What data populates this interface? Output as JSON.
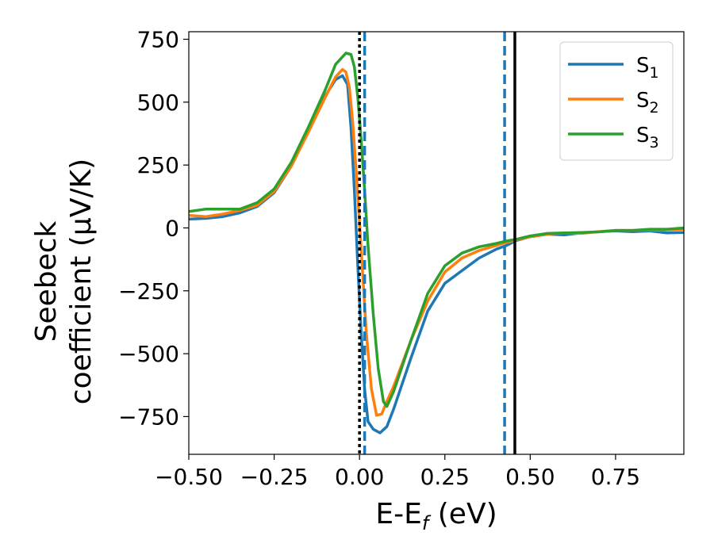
{
  "chart_data": {
    "type": "line",
    "xlabel_main": "E-E",
    "xlabel_sub": "f",
    "xlabel_unit": " (eV)",
    "ylabel_line1": "Seebeck",
    "ylabel_line2": "coefficient  (μV/K)",
    "xlim": [
      -0.5,
      0.95
    ],
    "ylim": [
      -900,
      780
    ],
    "x_ticks": [
      -0.5,
      -0.25,
      0.0,
      0.25,
      0.5,
      0.75
    ],
    "x_tick_labels": [
      "−0.50",
      "−0.25",
      "0.00",
      "0.25",
      "0.50",
      "0.75"
    ],
    "y_ticks": [
      750,
      500,
      250,
      0,
      -250,
      -500,
      -750
    ],
    "y_tick_labels": [
      "750",
      "500",
      "250",
      "0",
      "−250",
      "−500",
      "−750"
    ],
    "grid": false,
    "legend_position": "top-right",
    "series": [
      {
        "name": "S",
        "sub": "1",
        "color": "#1f77b4",
        "x": [
          -0.5,
          -0.45,
          -0.4,
          -0.35,
          -0.3,
          -0.25,
          -0.2,
          -0.15,
          -0.1,
          -0.07,
          -0.05,
          -0.035,
          -0.025,
          -0.015,
          -0.005,
          0.005,
          0.015,
          0.025,
          0.04,
          0.06,
          0.08,
          0.1,
          0.15,
          0.2,
          0.25,
          0.3,
          0.35,
          0.4,
          0.43,
          0.46,
          0.5,
          0.55,
          0.6,
          0.65,
          0.7,
          0.75,
          0.8,
          0.85,
          0.9,
          0.95
        ],
        "y": [
          35,
          38,
          45,
          60,
          85,
          140,
          245,
          385,
          525,
          590,
          605,
          570,
          400,
          150,
          -150,
          -420,
          -640,
          -770,
          -800,
          -815,
          -790,
          -720,
          -520,
          -330,
          -220,
          -170,
          -120,
          -85,
          -70,
          -50,
          -35,
          -25,
          -28,
          -20,
          -15,
          -12,
          -15,
          -12,
          -20,
          -18
        ]
      },
      {
        "name": "S",
        "sub": "2",
        "color": "#ff7f0e",
        "x": [
          -0.5,
          -0.45,
          -0.4,
          -0.35,
          -0.3,
          -0.25,
          -0.2,
          -0.15,
          -0.1,
          -0.07,
          -0.05,
          -0.04,
          -0.03,
          -0.02,
          -0.01,
          0.0,
          0.01,
          0.02,
          0.035,
          0.05,
          0.065,
          0.08,
          0.1,
          0.15,
          0.2,
          0.25,
          0.3,
          0.35,
          0.4,
          0.43,
          0.46,
          0.5,
          0.55,
          0.6,
          0.65,
          0.7,
          0.75,
          0.8,
          0.85,
          0.9,
          0.95
        ],
        "y": [
          50,
          45,
          55,
          70,
          90,
          145,
          245,
          380,
          520,
          600,
          630,
          620,
          560,
          420,
          230,
          20,
          -200,
          -420,
          -640,
          -745,
          -740,
          -690,
          -630,
          -450,
          -290,
          -175,
          -120,
          -90,
          -70,
          -58,
          -48,
          -35,
          -25,
          -20,
          -22,
          -15,
          -10,
          -10,
          -8,
          -8,
          -5
        ]
      },
      {
        "name": "S",
        "sub": "3",
        "color": "#2ca02c",
        "x": [
          -0.5,
          -0.45,
          -0.4,
          -0.35,
          -0.3,
          -0.25,
          -0.2,
          -0.15,
          -0.1,
          -0.07,
          -0.04,
          -0.025,
          -0.015,
          -0.005,
          0.005,
          0.015,
          0.025,
          0.04,
          0.055,
          0.07,
          0.08,
          0.1,
          0.15,
          0.2,
          0.25,
          0.3,
          0.35,
          0.4,
          0.43,
          0.46,
          0.5,
          0.55,
          0.6,
          0.65,
          0.7,
          0.75,
          0.8,
          0.85,
          0.9,
          0.95
        ],
        "y": [
          65,
          75,
          75,
          75,
          100,
          155,
          260,
          400,
          550,
          650,
          695,
          690,
          640,
          520,
          350,
          150,
          -70,
          -340,
          -560,
          -690,
          -710,
          -650,
          -450,
          -260,
          -150,
          -100,
          -75,
          -62,
          -52,
          -45,
          -32,
          -22,
          -20,
          -18,
          -16,
          -10,
          -10,
          -5,
          -5,
          0
        ]
      }
    ],
    "vertical_lines": [
      {
        "x": 0.0,
        "color": "#000000",
        "style": "dotted"
      },
      {
        "x": 0.015,
        "color": "#1f77b4",
        "style": "dashed"
      },
      {
        "x": 0.425,
        "color": "#1f77b4",
        "style": "dashed"
      },
      {
        "x": 0.455,
        "color": "#000000",
        "style": "solid"
      }
    ]
  }
}
